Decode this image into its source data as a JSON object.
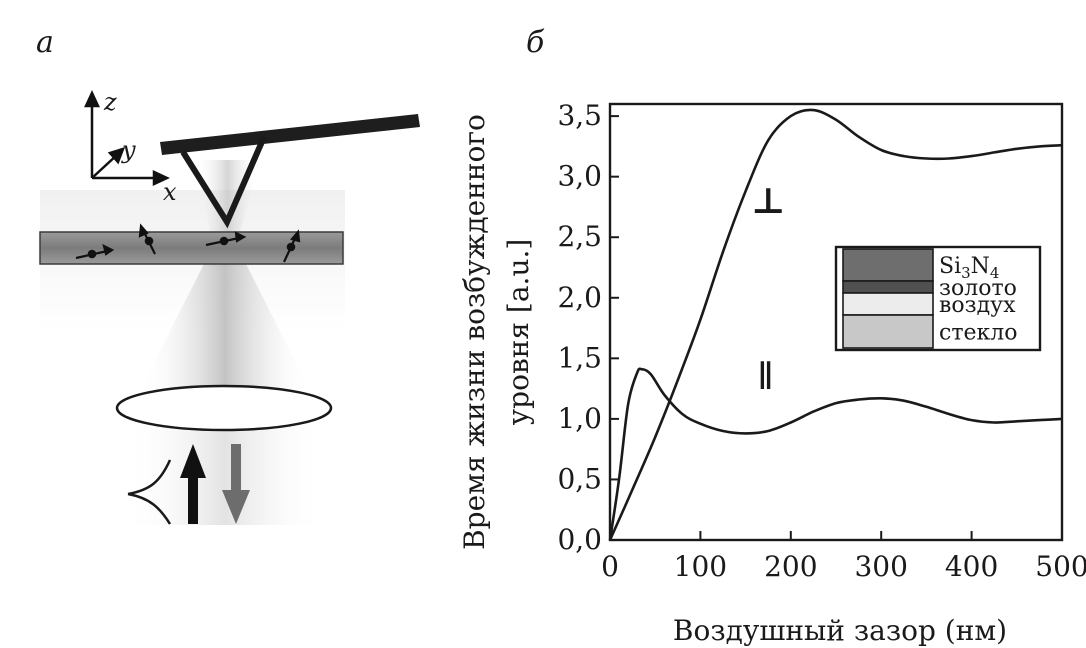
{
  "panels": {
    "a_label": "а",
    "b_label": "б"
  },
  "panel_a": {
    "axes": {
      "z": "z",
      "y": "y",
      "x": "x"
    }
  },
  "chart_data": {
    "type": "line",
    "xlabel": "Воздушный зазор (нм)",
    "ylabel_line1": "Время жизни возбужденного",
    "ylabel_line2": "уровня [a.u.]",
    "xlim": [
      0,
      500
    ],
    "ylim": [
      0,
      3.6
    ],
    "x_ticks": [
      {
        "v": 0,
        "label": "0"
      },
      {
        "v": 100,
        "label": "100"
      },
      {
        "v": 200,
        "label": "200"
      },
      {
        "v": 300,
        "label": "300"
      },
      {
        "v": 400,
        "label": "400"
      },
      {
        "v": 500,
        "label": "500"
      }
    ],
    "y_ticks": [
      {
        "v": 0.0,
        "label": "0,0"
      },
      {
        "v": 0.5,
        "label": "0,5"
      },
      {
        "v": 1.0,
        "label": "1,0"
      },
      {
        "v": 1.5,
        "label": "1,5"
      },
      {
        "v": 2.0,
        "label": "2,0"
      },
      {
        "v": 2.5,
        "label": "2,5"
      },
      {
        "v": 3.0,
        "label": "3,0"
      },
      {
        "v": 3.5,
        "label": "3,5"
      }
    ],
    "series": [
      {
        "name": "⊥",
        "x": [
          0,
          25,
          50,
          75,
          100,
          125,
          150,
          175,
          200,
          225,
          250,
          275,
          300,
          325,
          350,
          375,
          400,
          425,
          450,
          475,
          500
        ],
        "y": [
          0.0,
          0.42,
          0.85,
          1.32,
          1.82,
          2.38,
          2.88,
          3.3,
          3.5,
          3.55,
          3.47,
          3.33,
          3.22,
          3.17,
          3.15,
          3.15,
          3.17,
          3.2,
          3.23,
          3.25,
          3.26
        ]
      },
      {
        "name": "∥",
        "x": [
          0,
          10,
          20,
          30,
          35,
          45,
          60,
          80,
          100,
          125,
          150,
          175,
          200,
          225,
          250,
          275,
          300,
          325,
          350,
          375,
          400,
          425,
          450,
          475,
          500
        ],
        "y": [
          0.0,
          0.5,
          1.12,
          1.38,
          1.41,
          1.37,
          1.2,
          1.04,
          0.96,
          0.9,
          0.88,
          0.9,
          0.97,
          1.06,
          1.13,
          1.16,
          1.17,
          1.15,
          1.1,
          1.04,
          0.99,
          0.97,
          0.98,
          0.99,
          1.0
        ]
      }
    ],
    "legend": {
      "placement": "right",
      "items": [
        {
          "label": "Si",
          "sub1": "3",
          "mid": "N",
          "sub2": "4",
          "color": "#6e6e6e"
        },
        {
          "label": "золото",
          "color": "#505050"
        },
        {
          "label": "воздух",
          "color": "#ececec"
        },
        {
          "label": "стекло",
          "color": "#c8c8c8"
        }
      ]
    }
  }
}
